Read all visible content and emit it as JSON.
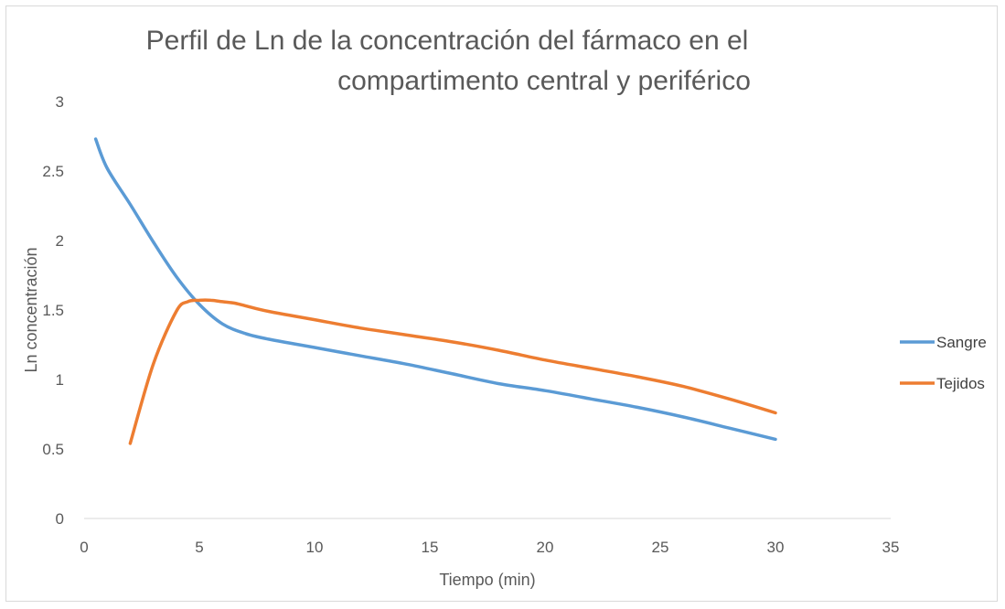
{
  "chart_data": {
    "type": "line",
    "title_lines": [
      "Perfil de Ln de la concentración del fármaco en el",
      "compartimento central y periférico"
    ],
    "xlabel": "Tiempo (min)",
    "ylabel": "Ln concentración",
    "xlim": [
      0,
      35
    ],
    "ylim": [
      0,
      3
    ],
    "x_ticks": [
      "0",
      "5",
      "10",
      "15",
      "20",
      "25",
      "30",
      "35"
    ],
    "y_ticks": [
      "0",
      "0.5",
      "1",
      "1.5",
      "2",
      "2.5",
      "3"
    ],
    "grid": false,
    "legend_position": "right",
    "series": [
      {
        "name": "Sangre",
        "color": "#5b9bd5",
        "x": [
          0.5,
          1,
          2,
          3,
          4,
          5,
          6,
          7,
          8,
          10,
          12,
          14,
          16,
          18,
          20,
          22,
          24,
          26,
          28,
          30
        ],
        "y": [
          2.73,
          2.52,
          2.26,
          1.99,
          1.74,
          1.54,
          1.4,
          1.33,
          1.29,
          1.23,
          1.17,
          1.11,
          1.04,
          0.97,
          0.92,
          0.86,
          0.8,
          0.73,
          0.65,
          0.57
        ]
      },
      {
        "name": "Tejidos",
        "color": "#ed7d31",
        "x": [
          2,
          3,
          4,
          4.5,
          5,
          5.5,
          6,
          6.5,
          7,
          8,
          10,
          12,
          14,
          16,
          18,
          20,
          22,
          24,
          26,
          28,
          30
        ],
        "y": [
          0.54,
          1.11,
          1.49,
          1.56,
          1.57,
          1.57,
          1.56,
          1.55,
          1.53,
          1.49,
          1.43,
          1.37,
          1.32,
          1.27,
          1.21,
          1.14,
          1.08,
          1.02,
          0.95,
          0.86,
          0.76
        ]
      }
    ]
  }
}
